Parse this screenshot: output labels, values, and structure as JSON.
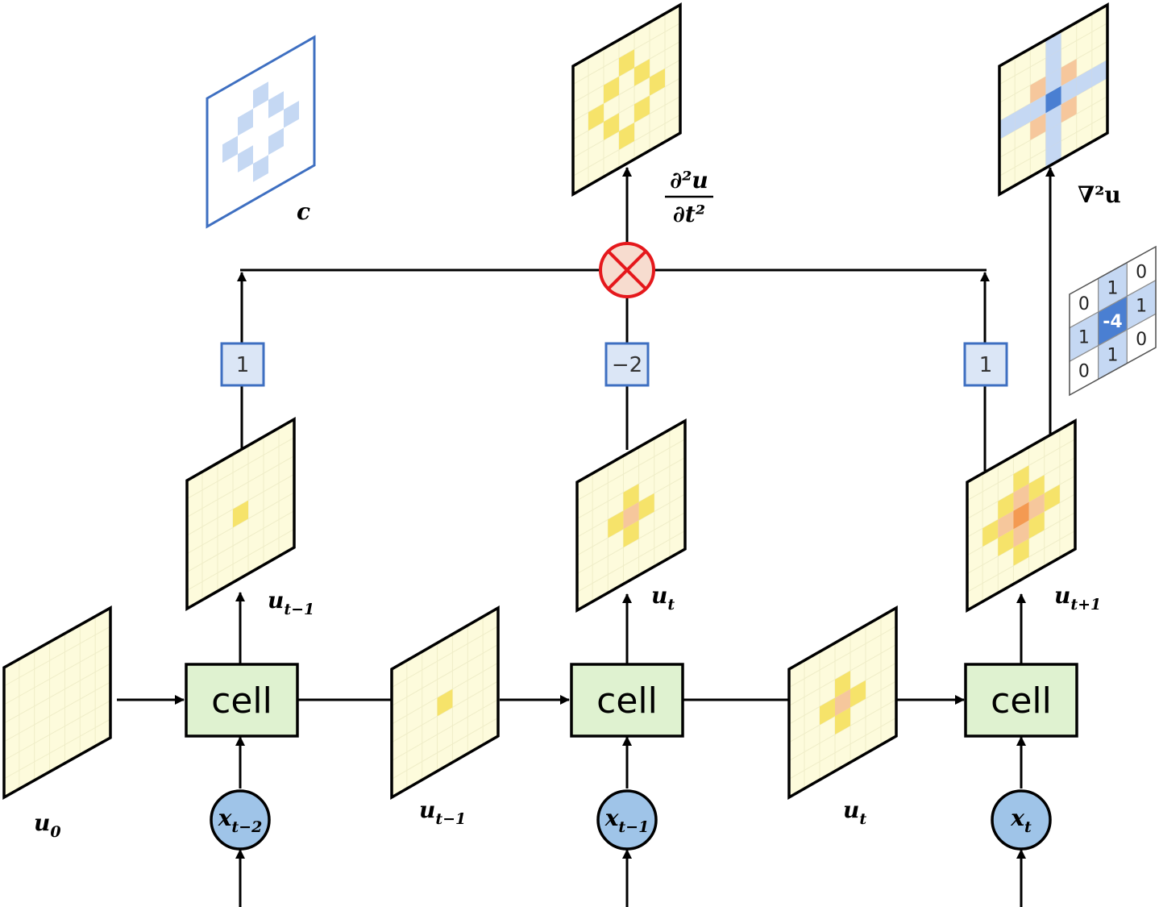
{
  "cells": [
    {
      "label": "cell"
    },
    {
      "label": "cell"
    },
    {
      "label": "cell"
    }
  ],
  "inputs": [
    {
      "base": "x",
      "sub": "t−2"
    },
    {
      "base": "x",
      "sub": "t−1"
    },
    {
      "base": "x",
      "sub": "t"
    }
  ],
  "state_labels": [
    {
      "base": "u",
      "sub": "0"
    },
    {
      "base": "u",
      "sub": "t−1"
    },
    {
      "base": "u",
      "sub": "t"
    }
  ],
  "output_labels": [
    {
      "base": "u",
      "sub": "t−1"
    },
    {
      "base": "u",
      "sub": "t"
    },
    {
      "base": "u",
      "sub": "t+1"
    }
  ],
  "coefficients": [
    "1",
    "−2",
    "1"
  ],
  "top_labels": {
    "c": "c",
    "d2u_num": "∂²u",
    "d2u_den": "∂t²",
    "laplacian": "∇²u"
  },
  "kernel": {
    "rows": [
      [
        "0",
        "1",
        "0"
      ],
      [
        "1",
        "-4",
        "1"
      ],
      [
        "0",
        "1",
        "0"
      ]
    ]
  },
  "colors": {
    "frame_bg": "#fdfbdc",
    "cell_fill": "#dff2d0",
    "input_fill": "#9fc4e8",
    "yellow": "#f6e36a",
    "light_orange": "#f6c79c",
    "orange": "#f49a52",
    "blue_light": "#c5d8f3",
    "blue_dark": "#4a7fd2",
    "multiply": "#e5181c"
  }
}
